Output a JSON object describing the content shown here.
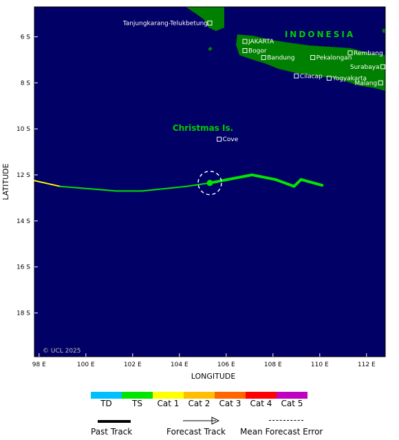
{
  "map": {
    "axes": {
      "xlabel": "LONGITUDE",
      "ylabel": "LATITUDE",
      "xticks": [
        "98 E",
        "100 E",
        "102 E",
        "104 E",
        "106 E",
        "108 E",
        "110 E",
        "112 E"
      ],
      "yticks": [
        "6 S",
        "8 S",
        "10 S",
        "12 S",
        "14 S",
        "16 S",
        "18 S"
      ],
      "lon_range": [
        97.8,
        112.8
      ],
      "lat_range": [
        -4.7,
        -19.9
      ]
    },
    "country_label": "INDONESIA",
    "island_label": "Christmas Is.",
    "copyright": "© UCL 2025",
    "places": [
      {
        "name": "Tanjungkarang-Telukbetung",
        "lon": 105.3,
        "lat": -5.4
      },
      {
        "name": "JAKARTA",
        "lon": 106.8,
        "lat": -6.2
      },
      {
        "name": "Bogor",
        "lon": 106.8,
        "lat": -6.6
      },
      {
        "name": "Bandung",
        "lon": 107.6,
        "lat": -6.9
      },
      {
        "name": "Pekalongan",
        "lon": 109.7,
        "lat": -6.9
      },
      {
        "name": "Rembang",
        "lon": 111.3,
        "lat": -6.7
      },
      {
        "name": "Surabaya",
        "lon": 112.7,
        "lat": -7.3
      },
      {
        "name": "Cilacap",
        "lon": 109.0,
        "lat": -7.7
      },
      {
        "name": "Yogyakarta",
        "lon": 110.4,
        "lat": -7.8
      },
      {
        "name": "Malang",
        "lon": 112.6,
        "lat": -8.0
      },
      {
        "name": "Cove",
        "lon": 105.7,
        "lat": -10.45
      }
    ],
    "past_track": [
      {
        "lon": 97.8,
        "lat": -12.25,
        "cat": "Cat 1"
      },
      {
        "lon": 98.9,
        "lat": -12.5,
        "cat": "Cat 1"
      },
      {
        "lon": 101.3,
        "lat": -12.7,
        "cat": "TS"
      },
      {
        "lon": 102.4,
        "lat": -12.7,
        "cat": "TS"
      },
      {
        "lon": 104.3,
        "lat": -12.5,
        "cat": "TS"
      },
      {
        "lon": 105.3,
        "lat": -12.35,
        "cat": "TS"
      }
    ],
    "current_position": {
      "lon": 105.3,
      "lat": -12.35
    },
    "forecast_track": [
      {
        "lon": 105.3,
        "lat": -12.35,
        "cat": "TS"
      },
      {
        "lon": 107.1,
        "lat": -12.0,
        "cat": "TS"
      },
      {
        "lon": 108.1,
        "lat": -12.2,
        "cat": "TS"
      },
      {
        "lon": 108.9,
        "lat": -12.5,
        "cat": "TS"
      },
      {
        "lon": 109.2,
        "lat": -12.2,
        "cat": "TS"
      },
      {
        "lon": 110.1,
        "lat": -12.45,
        "cat": "TS"
      }
    ]
  },
  "legend": {
    "categories": [
      {
        "label": "TD",
        "color": "#00bfff"
      },
      {
        "label": "TS",
        "color": "#00e600"
      },
      {
        "label": "Cat 1",
        "color": "#ffff00"
      },
      {
        "label": "Cat 2",
        "color": "#ffbf00"
      },
      {
        "label": "Cat 3",
        "color": "#ff6600"
      },
      {
        "label": "Cat 4",
        "color": "#ff0000"
      },
      {
        "label": "Cat 5",
        "color": "#c000c0"
      }
    ],
    "past_track_label": "Past Track",
    "forecast_track_label": "Forecast Track",
    "error_label": "Mean Forecast Error"
  }
}
